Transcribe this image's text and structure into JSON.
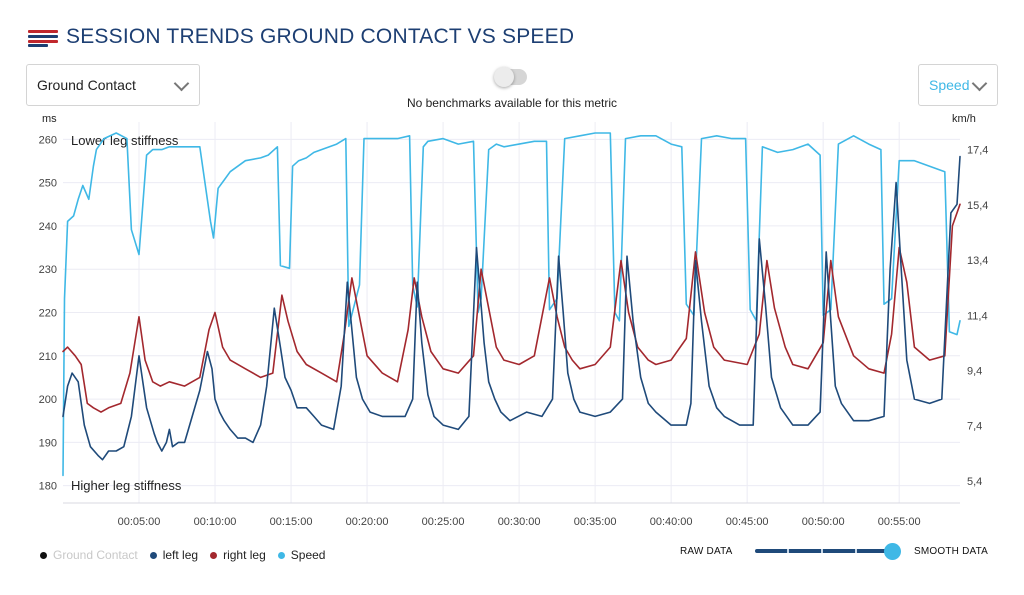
{
  "header": {
    "title": "SESSION TRENDS GROUND CONTACT VS SPEED"
  },
  "controls": {
    "metric_select": "Ground Contact",
    "secondary_select": "Speed",
    "benchmark_toggle_on": false,
    "benchmark_message": "No benchmarks available for this metric"
  },
  "colors": {
    "title": "#1d3f73",
    "left_leg": "#1f4a7a",
    "right_leg": "#a3282e",
    "speed": "#3fb8e6",
    "ground_contact": "#111111"
  },
  "chart_data": {
    "type": "line",
    "title": "",
    "left_axis_unit": "ms",
    "right_axis_unit": "km/h",
    "left_ylim": [
      176,
      264
    ],
    "right_ylim": [
      4.6,
      18.4
    ],
    "left_ticks": [
      "180",
      "190",
      "200",
      "210",
      "220",
      "230",
      "240",
      "250",
      "260"
    ],
    "right_ticks": [
      "5,4",
      "7,4",
      "9,4",
      "11,4",
      "13,4",
      "15,4",
      "17,4"
    ],
    "xlabel": "",
    "x_range_minutes": [
      0,
      59
    ],
    "x_ticks": [
      "00:05:00",
      "00:10:00",
      "00:15:00",
      "00:20:00",
      "00:25:00",
      "00:30:00",
      "00:35:00",
      "00:40:00",
      "00:45:00",
      "00:50:00",
      "00:55:00"
    ],
    "annotations": {
      "top": "Lower leg stiffness",
      "bottom": "Higher leg stiffness"
    },
    "grid": true,
    "legend": [
      "Ground Contact",
      "left leg",
      "right leg",
      "Speed"
    ],
    "legend_position": "bottom-left",
    "series": [
      {
        "name": "left leg",
        "axis": "left",
        "x": [
          0,
          0.3,
          0.6,
          1.0,
          1.4,
          1.8,
          2.3,
          2.6,
          3.0,
          3.5,
          4.0,
          4.5,
          5.0,
          5.5,
          6.0,
          6.2,
          6.5,
          6.8,
          7.0,
          7.2,
          7.6,
          8.0,
          9.0,
          9.5,
          9.8,
          10.0,
          10.3,
          10.6,
          11.0,
          11.5,
          12.0,
          12.5,
          13.0,
          13.4,
          13.9,
          14.3,
          14.6,
          15.0,
          15.4,
          16.0,
          16.5,
          17.0,
          17.8,
          18.3,
          18.7,
          19.0,
          19.3,
          19.7,
          20.2,
          21.0,
          21.8,
          22.5,
          23.0,
          23.3,
          23.6,
          24.0,
          24.4,
          25.0,
          26.0,
          26.7,
          27.2,
          27.7,
          28.0,
          28.4,
          28.8,
          29.4,
          30.5,
          31.5,
          32.2,
          32.6,
          32.9,
          33.2,
          33.6,
          34.0,
          35.0,
          36.0,
          36.8,
          37.1,
          37.5,
          38.0,
          38.5,
          39.0,
          40.0,
          41.0,
          41.3,
          41.6,
          42.0,
          42.5,
          43.0,
          43.5,
          44.5,
          45.4,
          45.8,
          46.2,
          46.6,
          47.2,
          48.0,
          49.0,
          49.8,
          50.2,
          50.5,
          50.8,
          51.2,
          52.0,
          53.0,
          54.0,
          54.4,
          54.8,
          55.1,
          55.5,
          56.0,
          57.0,
          57.8,
          58.4,
          58.8,
          59.0
        ],
        "values": [
          196,
          203,
          206,
          204,
          194,
          189,
          187,
          186,
          188,
          188,
          189,
          196,
          210,
          198,
          192,
          190,
          188,
          190,
          193,
          189,
          190,
          190,
          202,
          211,
          207,
          200,
          197,
          195,
          193,
          191,
          191,
          190,
          194,
          203,
          221,
          212,
          205,
          202,
          198,
          198,
          196,
          194,
          193,
          203,
          227,
          216,
          205,
          200,
          197,
          196,
          196,
          196,
          200,
          227,
          213,
          201,
          196,
          194,
          193,
          196,
          235,
          213,
          204,
          200,
          197,
          195,
          197,
          196,
          200,
          233,
          220,
          206,
          200,
          197,
          196,
          197,
          200,
          233,
          218,
          205,
          199,
          197,
          194,
          194,
          199,
          232,
          218,
          203,
          198,
          196,
          194,
          194,
          237,
          222,
          205,
          198,
          194,
          194,
          197,
          234,
          218,
          203,
          199,
          195,
          195,
          196,
          230,
          250,
          232,
          209,
          200,
          199,
          200,
          243,
          245,
          256
        ]
      },
      {
        "name": "right leg",
        "axis": "left",
        "x": [
          0,
          0.3,
          0.8,
          1.2,
          1.6,
          2.0,
          2.5,
          3.0,
          3.8,
          4.4,
          5.0,
          5.4,
          5.9,
          6.4,
          7.0,
          8.0,
          9.0,
          9.6,
          10.0,
          10.5,
          11.0,
          12.0,
          13.0,
          13.8,
          14.4,
          14.8,
          15.4,
          16.0,
          17.0,
          18.0,
          18.5,
          19.0,
          19.5,
          20.0,
          21.0,
          22.0,
          22.7,
          23.1,
          23.6,
          24.2,
          25.0,
          26.0,
          27.0,
          27.5,
          28.0,
          28.5,
          29.0,
          30.0,
          31.0,
          32.0,
          32.5,
          33.0,
          33.5,
          34.0,
          35.0,
          36.0,
          36.7,
          37.2,
          37.8,
          38.5,
          39.0,
          40.0,
          41.0,
          41.6,
          42.2,
          42.8,
          43.5,
          45.0,
          45.8,
          46.3,
          46.8,
          47.5,
          48.0,
          49.0,
          50.0,
          50.5,
          51.0,
          52.0,
          53.0,
          54.0,
          54.5,
          55.0,
          55.5,
          56.0,
          57.0,
          58.0,
          58.5,
          59.0
        ],
        "values": [
          211,
          212,
          210,
          208,
          199,
          198,
          197,
          198,
          199,
          206,
          219,
          209,
          204,
          203,
          204,
          203,
          205,
          216,
          220,
          212,
          209,
          207,
          205,
          206,
          224,
          218,
          211,
          208,
          206,
          204,
          215,
          228,
          219,
          210,
          206,
          204,
          216,
          228,
          219,
          211,
          207,
          206,
          210,
          230,
          221,
          212,
          209,
          208,
          210,
          228,
          219,
          212,
          209,
          207,
          208,
          212,
          232,
          220,
          212,
          209,
          208,
          209,
          214,
          234,
          220,
          212,
          209,
          208,
          215,
          232,
          221,
          212,
          208,
          207,
          213,
          232,
          219,
          210,
          207,
          206,
          215,
          235,
          227,
          212,
          209,
          210,
          240,
          245
        ]
      },
      {
        "name": "Speed",
        "axis": "right",
        "x": [
          0,
          0.1,
          0.3,
          0.7,
          1.0,
          1.3,
          1.7,
          2.0,
          2.2,
          2.7,
          3.5,
          4.2,
          4.5,
          5.0,
          5.5,
          5.9,
          6.2,
          6.5,
          7.0,
          7.5,
          8.0,
          9.0,
          9.7,
          9.9,
          10.2,
          10.6,
          11.0,
          11.5,
          12.0,
          13.0,
          13.5,
          14.1,
          14.3,
          14.9,
          15.1,
          15.5,
          16.0,
          16.5,
          18.0,
          18.6,
          18.8,
          19.5,
          19.8,
          20.2,
          21.0,
          22.0,
          22.8,
          23.0,
          23.3,
          23.7,
          24.0,
          25.0,
          26.0,
          27.0,
          27.3,
          27.5,
          28.0,
          28.5,
          29.0,
          30.0,
          31.0,
          31.8,
          32.0,
          32.5,
          33.0,
          34.0,
          35.0,
          36.0,
          36.3,
          36.6,
          37.0,
          38.0,
          39.0,
          40.0,
          40.7,
          41.0,
          41.5,
          42.0,
          43.0,
          44.0,
          44.9,
          45.2,
          45.6,
          46.0,
          47.0,
          48.0,
          49.0,
          49.8,
          50.0,
          50.5,
          51.0,
          52.0,
          53.0,
          53.8,
          54.0,
          54.5,
          55.0,
          56.0,
          57.0,
          58.0,
          58.3,
          58.8,
          59.0
        ],
        "values": [
          5.6,
          12.0,
          14.8,
          15.0,
          15.6,
          16.1,
          15.6,
          16.8,
          17.4,
          17.8,
          18.0,
          17.8,
          14.5,
          13.6,
          17.2,
          17.4,
          17.4,
          17.4,
          17.5,
          17.5,
          17.5,
          17.5,
          14.8,
          14.2,
          16.0,
          16.3,
          16.6,
          16.8,
          17.0,
          17.1,
          17.2,
          17.5,
          13.2,
          13.1,
          16.8,
          17.0,
          17.1,
          17.3,
          17.6,
          17.8,
          11.0,
          12.5,
          17.8,
          17.8,
          17.8,
          17.8,
          17.9,
          12.5,
          11.7,
          17.5,
          17.7,
          17.8,
          17.6,
          17.7,
          11.5,
          12.0,
          17.4,
          17.6,
          17.5,
          17.6,
          17.7,
          17.7,
          11.6,
          12.0,
          17.8,
          17.9,
          18.0,
          18.0,
          11.5,
          11.2,
          17.8,
          17.9,
          17.9,
          17.6,
          17.5,
          11.8,
          11.4,
          17.8,
          17.9,
          17.8,
          17.8,
          11.6,
          11.2,
          17.5,
          17.3,
          17.4,
          17.6,
          17.2,
          11.4,
          11.6,
          17.6,
          17.9,
          17.6,
          17.4,
          11.8,
          12.0,
          17.0,
          17.0,
          16.8,
          16.6,
          10.8,
          10.7,
          11.2
        ]
      }
    ]
  },
  "legend_items": [
    {
      "label": "Ground Contact",
      "color": "#111111",
      "label_color": "#c8c8c8"
    },
    {
      "label": "left leg",
      "color": "#1f4a7a",
      "label_color": "#222222"
    },
    {
      "label": "right leg",
      "color": "#a3282e",
      "label_color": "#222222"
    },
    {
      "label": "Speed",
      "color": "#3fb8e6",
      "label_color": "#222222"
    }
  ],
  "smoothing": {
    "left_label": "RAW DATA",
    "right_label": "SMOOTH DATA",
    "level": 1.0
  }
}
